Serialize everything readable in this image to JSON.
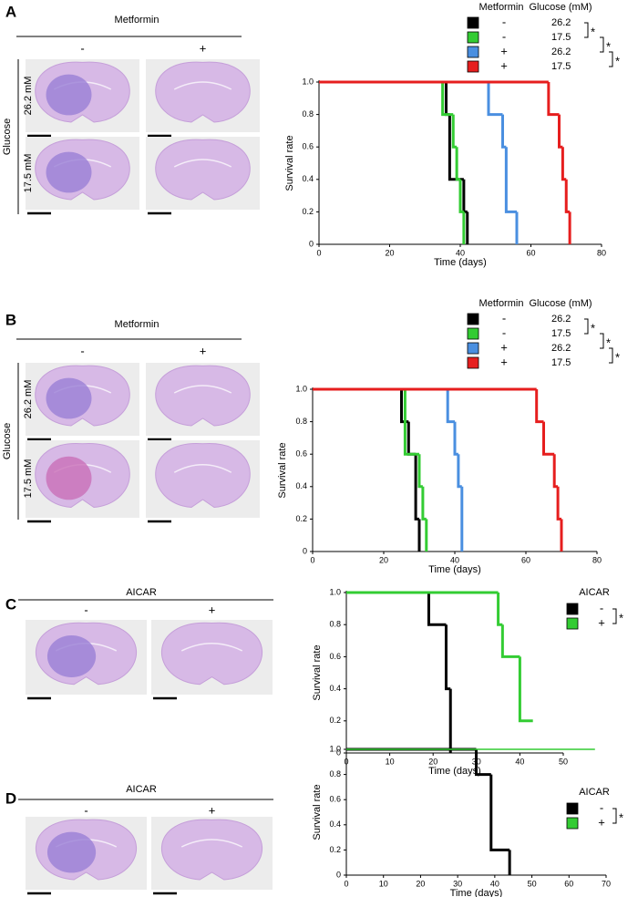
{
  "panels": [
    {
      "label": "A",
      "treatment": "Metformin",
      "minus": "-",
      "plus": "+",
      "row_group": "Glucose",
      "rows": [
        "26.2 mM",
        "17.5 mM"
      ]
    },
    {
      "label": "B",
      "treatment": "Metformin",
      "minus": "-",
      "plus": "+",
      "row_group": "Glucose",
      "rows": [
        "26.2 mM",
        "17.5 mM"
      ]
    },
    {
      "label": "C",
      "treatment": "AICAR",
      "minus": "-",
      "plus": "+"
    },
    {
      "label": "D",
      "treatment": "AICAR",
      "minus": "-",
      "plus": "+"
    }
  ],
  "chart_data": [
    {
      "type": "step",
      "ylabel": "Survival rate",
      "xlabel": "Time (days)",
      "legend_headers": [
        "Metformin",
        "Glucose (mM)"
      ],
      "annotations": [
        "*",
        "*",
        "*"
      ],
      "xlim": [
        0,
        80
      ],
      "xticks": [
        0,
        20,
        40,
        60,
        80
      ],
      "ylim": [
        0,
        1
      ],
      "yticks": [
        0,
        0.2,
        0.4,
        0.6,
        0.8,
        {
          "value": 1,
          "label": "1.0"
        }
      ],
      "series": [
        {
          "name": "-",
          "glucose": "26.2",
          "color": "#000000",
          "x": [
            0,
            36,
            37,
            41,
            42
          ],
          "values": [
            1,
            0.8,
            0.4,
            0.2,
            0
          ]
        },
        {
          "name": "-",
          "glucose": "17.5",
          "color": "#33cc33",
          "x": [
            0,
            35,
            38,
            39,
            40,
            41
          ],
          "values": [
            1,
            0.8,
            0.6,
            0.4,
            0.2,
            0
          ]
        },
        {
          "name": "+",
          "glucose": "26.2",
          "color": "#4a8fe0",
          "x": [
            0,
            48,
            52,
            53,
            56
          ],
          "values": [
            1,
            0.8,
            0.6,
            0.2,
            0
          ]
        },
        {
          "name": "+",
          "glucose": "17.5",
          "color": "#e61e1e",
          "x": [
            0,
            65,
            68,
            69,
            70,
            71
          ],
          "values": [
            1,
            0.8,
            0.6,
            0.4,
            0.2,
            0
          ]
        }
      ]
    },
    {
      "type": "step",
      "ylabel": "Survival rate",
      "xlabel": "Time (days)",
      "legend_headers": [
        "Metformin",
        "Glucose (mM)"
      ],
      "annotations": [
        "*",
        "*",
        "*"
      ],
      "xlim": [
        0,
        80
      ],
      "xticks": [
        0,
        20,
        40,
        60,
        80
      ],
      "ylim": [
        0,
        1
      ],
      "yticks": [
        0,
        0.2,
        0.4,
        0.6,
        0.8,
        {
          "value": 1,
          "label": "1.0"
        }
      ],
      "series": [
        {
          "name": "-",
          "glucose": "26.2",
          "color": "#000000",
          "x": [
            0,
            25,
            27,
            29,
            30
          ],
          "values": [
            1,
            0.8,
            0.6,
            0.2,
            0
          ]
        },
        {
          "name": "-",
          "glucose": "17.5",
          "color": "#33cc33",
          "x": [
            0,
            26,
            30,
            31,
            32
          ],
          "values": [
            1,
            0.6,
            0.4,
            0.2,
            0
          ]
        },
        {
          "name": "+",
          "glucose": "26.2",
          "color": "#4a8fe0",
          "x": [
            0,
            38,
            40,
            41,
            42
          ],
          "values": [
            1,
            0.8,
            0.6,
            0.4,
            0
          ]
        },
        {
          "name": "+",
          "glucose": "17.5",
          "color": "#e61e1e",
          "x": [
            0,
            63,
            65,
            68,
            69,
            70
          ],
          "values": [
            1,
            0.8,
            0.6,
            0.4,
            0.2,
            0
          ]
        }
      ]
    },
    {
      "type": "step",
      "ylabel": "Survival rate",
      "xlabel": "Time (days)",
      "legend_headers": [
        "AICAR"
      ],
      "annotations": [
        "*"
      ],
      "xlim": [
        0,
        50
      ],
      "xticks": [
        0,
        10,
        20,
        30,
        40,
        50
      ],
      "ylim": [
        0,
        1
      ],
      "yticks": [
        0,
        0.2,
        0.4,
        0.6,
        0.8,
        {
          "value": 1,
          "label": "1.0"
        }
      ],
      "series": [
        {
          "name": "-",
          "color": "#000000",
          "x": [
            0,
            19,
            23,
            24
          ],
          "values": [
            1,
            0.8,
            0.4,
            0
          ]
        },
        {
          "name": "+",
          "color": "#33cc33",
          "x": [
            0,
            35,
            36,
            40,
            43
          ],
          "values": [
            1,
            0.8,
            0.6,
            0.2,
            0.2
          ]
        }
      ]
    },
    {
      "type": "step",
      "ylabel": "Survival rate",
      "xlabel": "Time (days)",
      "legend_headers": [
        "AICAR"
      ],
      "annotations": [
        "*"
      ],
      "xlim": [
        0,
        70
      ],
      "xticks": [
        0,
        10,
        20,
        30,
        40,
        50,
        60,
        70
      ],
      "ylim": [
        0,
        1
      ],
      "yticks": [
        0,
        0.2,
        0.4,
        0.6,
        0.8,
        {
          "value": 1,
          "label": "1.0"
        }
      ],
      "series": [
        {
          "name": "-",
          "color": "#000000",
          "x": [
            0,
            35,
            39,
            44
          ],
          "values": [
            1,
            0.8,
            0.2,
            0
          ]
        },
        {
          "name": "+",
          "color": "#33cc33",
          "x": [
            0,
            67
          ],
          "values": [
            1,
            1
          ]
        }
      ]
    }
  ]
}
